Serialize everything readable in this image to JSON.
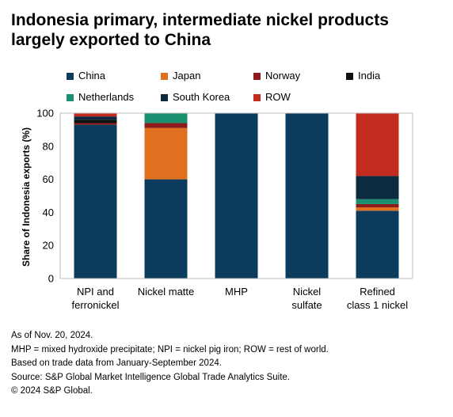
{
  "title_lines": [
    "Indonesia primary, intermediate nickel products",
    "largely exported to China"
  ],
  "chart_data": {
    "type": "bar",
    "stacked": true,
    "categories": [
      [
        "NPI and",
        "ferronickel"
      ],
      [
        "Nickel matte"
      ],
      [
        "MHP"
      ],
      [
        "Nickel",
        "sulfate"
      ],
      [
        "Refined",
        "class 1 nickel"
      ]
    ],
    "ylabel": "Share of Indonesia exports (%)",
    "ylim": [
      0,
      100
    ],
    "yticks": [
      0,
      20,
      40,
      60,
      80,
      100
    ],
    "grid": false,
    "legend_position": "top",
    "series": [
      {
        "name": "China",
        "color": "#0b3c5d",
        "values": [
          93,
          60,
          100,
          100,
          41
        ]
      },
      {
        "name": "Japan",
        "color": "#e0701f",
        "values": [
          0,
          31,
          0,
          0,
          2
        ]
      },
      {
        "name": "Norway",
        "color": "#8e1b1b",
        "values": [
          1,
          3,
          0,
          0,
          2
        ]
      },
      {
        "name": "India",
        "color": "#111111",
        "values": [
          2,
          0,
          0,
          0,
          0
        ]
      },
      {
        "name": "Netherlands",
        "color": "#1a9070",
        "values": [
          0,
          6,
          0,
          0,
          3
        ]
      },
      {
        "name": "South Korea",
        "color": "#0c2a40",
        "values": [
          2,
          0,
          0,
          0,
          14
        ]
      },
      {
        "name": "ROW",
        "color": "#c42b1f",
        "values": [
          2,
          0,
          0,
          0,
          38
        ]
      }
    ]
  },
  "notes": [
    "As of Nov. 20, 2024.",
    "MHP = mixed hydroxide precipitate; NPI = nickel pig iron; ROW = rest of world.",
    "Based on trade data from January-September 2024.",
    "Source: S&P Global Market Intelligence Global Trade Analytics Suite.",
    "© 2024 S&P Global."
  ]
}
